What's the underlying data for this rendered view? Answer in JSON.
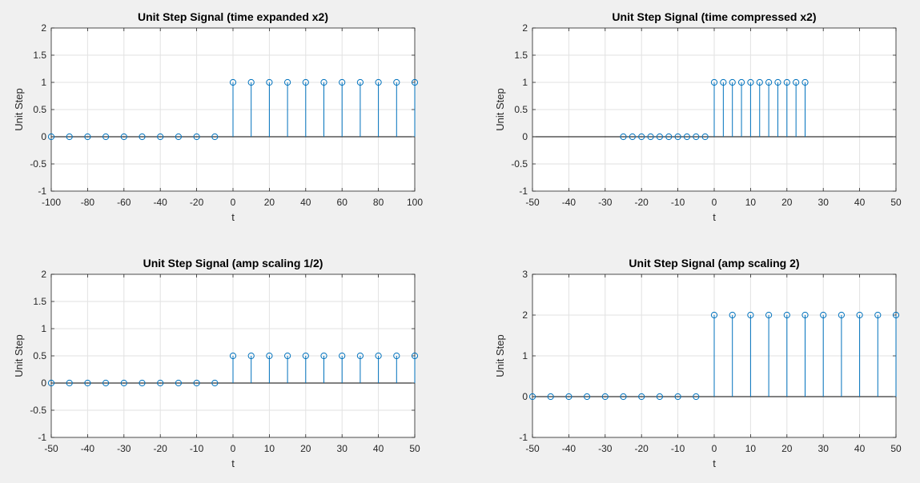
{
  "chart_data": [
    {
      "type": "stem",
      "title": "Unit Step Signal (time expanded x2)",
      "xlabel": "t",
      "ylabel": "Unit Step",
      "xlim": [
        -100,
        100
      ],
      "ylim": [
        -1,
        2
      ],
      "xticks": [
        "-100",
        "-80",
        "-60",
        "-40",
        "-20",
        "0",
        "20",
        "40",
        "60",
        "80",
        "100"
      ],
      "yticks": [
        "-1",
        "-0.5",
        "0",
        "0.5",
        "1",
        "1.5",
        "2"
      ],
      "grid": true,
      "x": [
        -100,
        -90,
        -80,
        -70,
        -60,
        -50,
        -40,
        -30,
        -20,
        -10,
        0,
        10,
        20,
        30,
        40,
        50,
        60,
        70,
        80,
        90,
        100
      ],
      "y": [
        0,
        0,
        0,
        0,
        0,
        0,
        0,
        0,
        0,
        0,
        1,
        1,
        1,
        1,
        1,
        1,
        1,
        1,
        1,
        1,
        1
      ]
    },
    {
      "type": "stem",
      "title": "Unit Step Signal (time compressed x2)",
      "xlabel": "t",
      "ylabel": "Unit Step",
      "xlim": [
        -50,
        50
      ],
      "ylim": [
        -1,
        2
      ],
      "xticks": [
        "-50",
        "-40",
        "-30",
        "-20",
        "-10",
        "0",
        "10",
        "20",
        "30",
        "40",
        "50"
      ],
      "yticks": [
        "-1",
        "-0.5",
        "0",
        "0.5",
        "1",
        "1.5",
        "2"
      ],
      "grid": true,
      "x": [
        -25,
        -22.5,
        -20,
        -17.5,
        -15,
        -12.5,
        -10,
        -7.5,
        -5,
        -2.5,
        0,
        2.5,
        5,
        7.5,
        10,
        12.5,
        15,
        17.5,
        20,
        22.5,
        25
      ],
      "y": [
        0,
        0,
        0,
        0,
        0,
        0,
        0,
        0,
        0,
        0,
        1,
        1,
        1,
        1,
        1,
        1,
        1,
        1,
        1,
        1,
        1
      ]
    },
    {
      "type": "stem",
      "title": "Unit Step Signal (amp scaling 1/2)",
      "xlabel": "t",
      "ylabel": "Unit Step",
      "xlim": [
        -50,
        50
      ],
      "ylim": [
        -1,
        2
      ],
      "xticks": [
        "-50",
        "-40",
        "-30",
        "-20",
        "-10",
        "0",
        "10",
        "20",
        "30",
        "40",
        "50"
      ],
      "yticks": [
        "-1",
        "-0.5",
        "0",
        "0.5",
        "1",
        "1.5",
        "2"
      ],
      "grid": true,
      "x": [
        -50,
        -45,
        -40,
        -35,
        -30,
        -25,
        -20,
        -15,
        -10,
        -5,
        0,
        5,
        10,
        15,
        20,
        25,
        30,
        35,
        40,
        45,
        50
      ],
      "y": [
        0,
        0,
        0,
        0,
        0,
        0,
        0,
        0,
        0,
        0,
        0.5,
        0.5,
        0.5,
        0.5,
        0.5,
        0.5,
        0.5,
        0.5,
        0.5,
        0.5,
        0.5
      ]
    },
    {
      "type": "stem",
      "title": "Unit Step Signal (amp scaling 2)",
      "xlabel": "t",
      "ylabel": "Unit Step",
      "xlim": [
        -50,
        50
      ],
      "ylim": [
        -1,
        3
      ],
      "xticks": [
        "-50",
        "-40",
        "-30",
        "-20",
        "-10",
        "0",
        "10",
        "20",
        "30",
        "40",
        "50"
      ],
      "yticks": [
        "-1",
        "0",
        "1",
        "2",
        "3"
      ],
      "grid": true,
      "x": [
        -50,
        -45,
        -40,
        -35,
        -30,
        -25,
        -20,
        -15,
        -10,
        -5,
        0,
        5,
        10,
        15,
        20,
        25,
        30,
        35,
        40,
        45,
        50
      ],
      "y": [
        0,
        0,
        0,
        0,
        0,
        0,
        0,
        0,
        0,
        0,
        2,
        2,
        2,
        2,
        2,
        2,
        2,
        2,
        2,
        2,
        2
      ]
    }
  ],
  "colors": {
    "stem": "#0072bd",
    "axes_background": "#ffffff",
    "figure_background": "#f0f0f0",
    "grid": "#e2e2e2",
    "text": "#262626"
  }
}
